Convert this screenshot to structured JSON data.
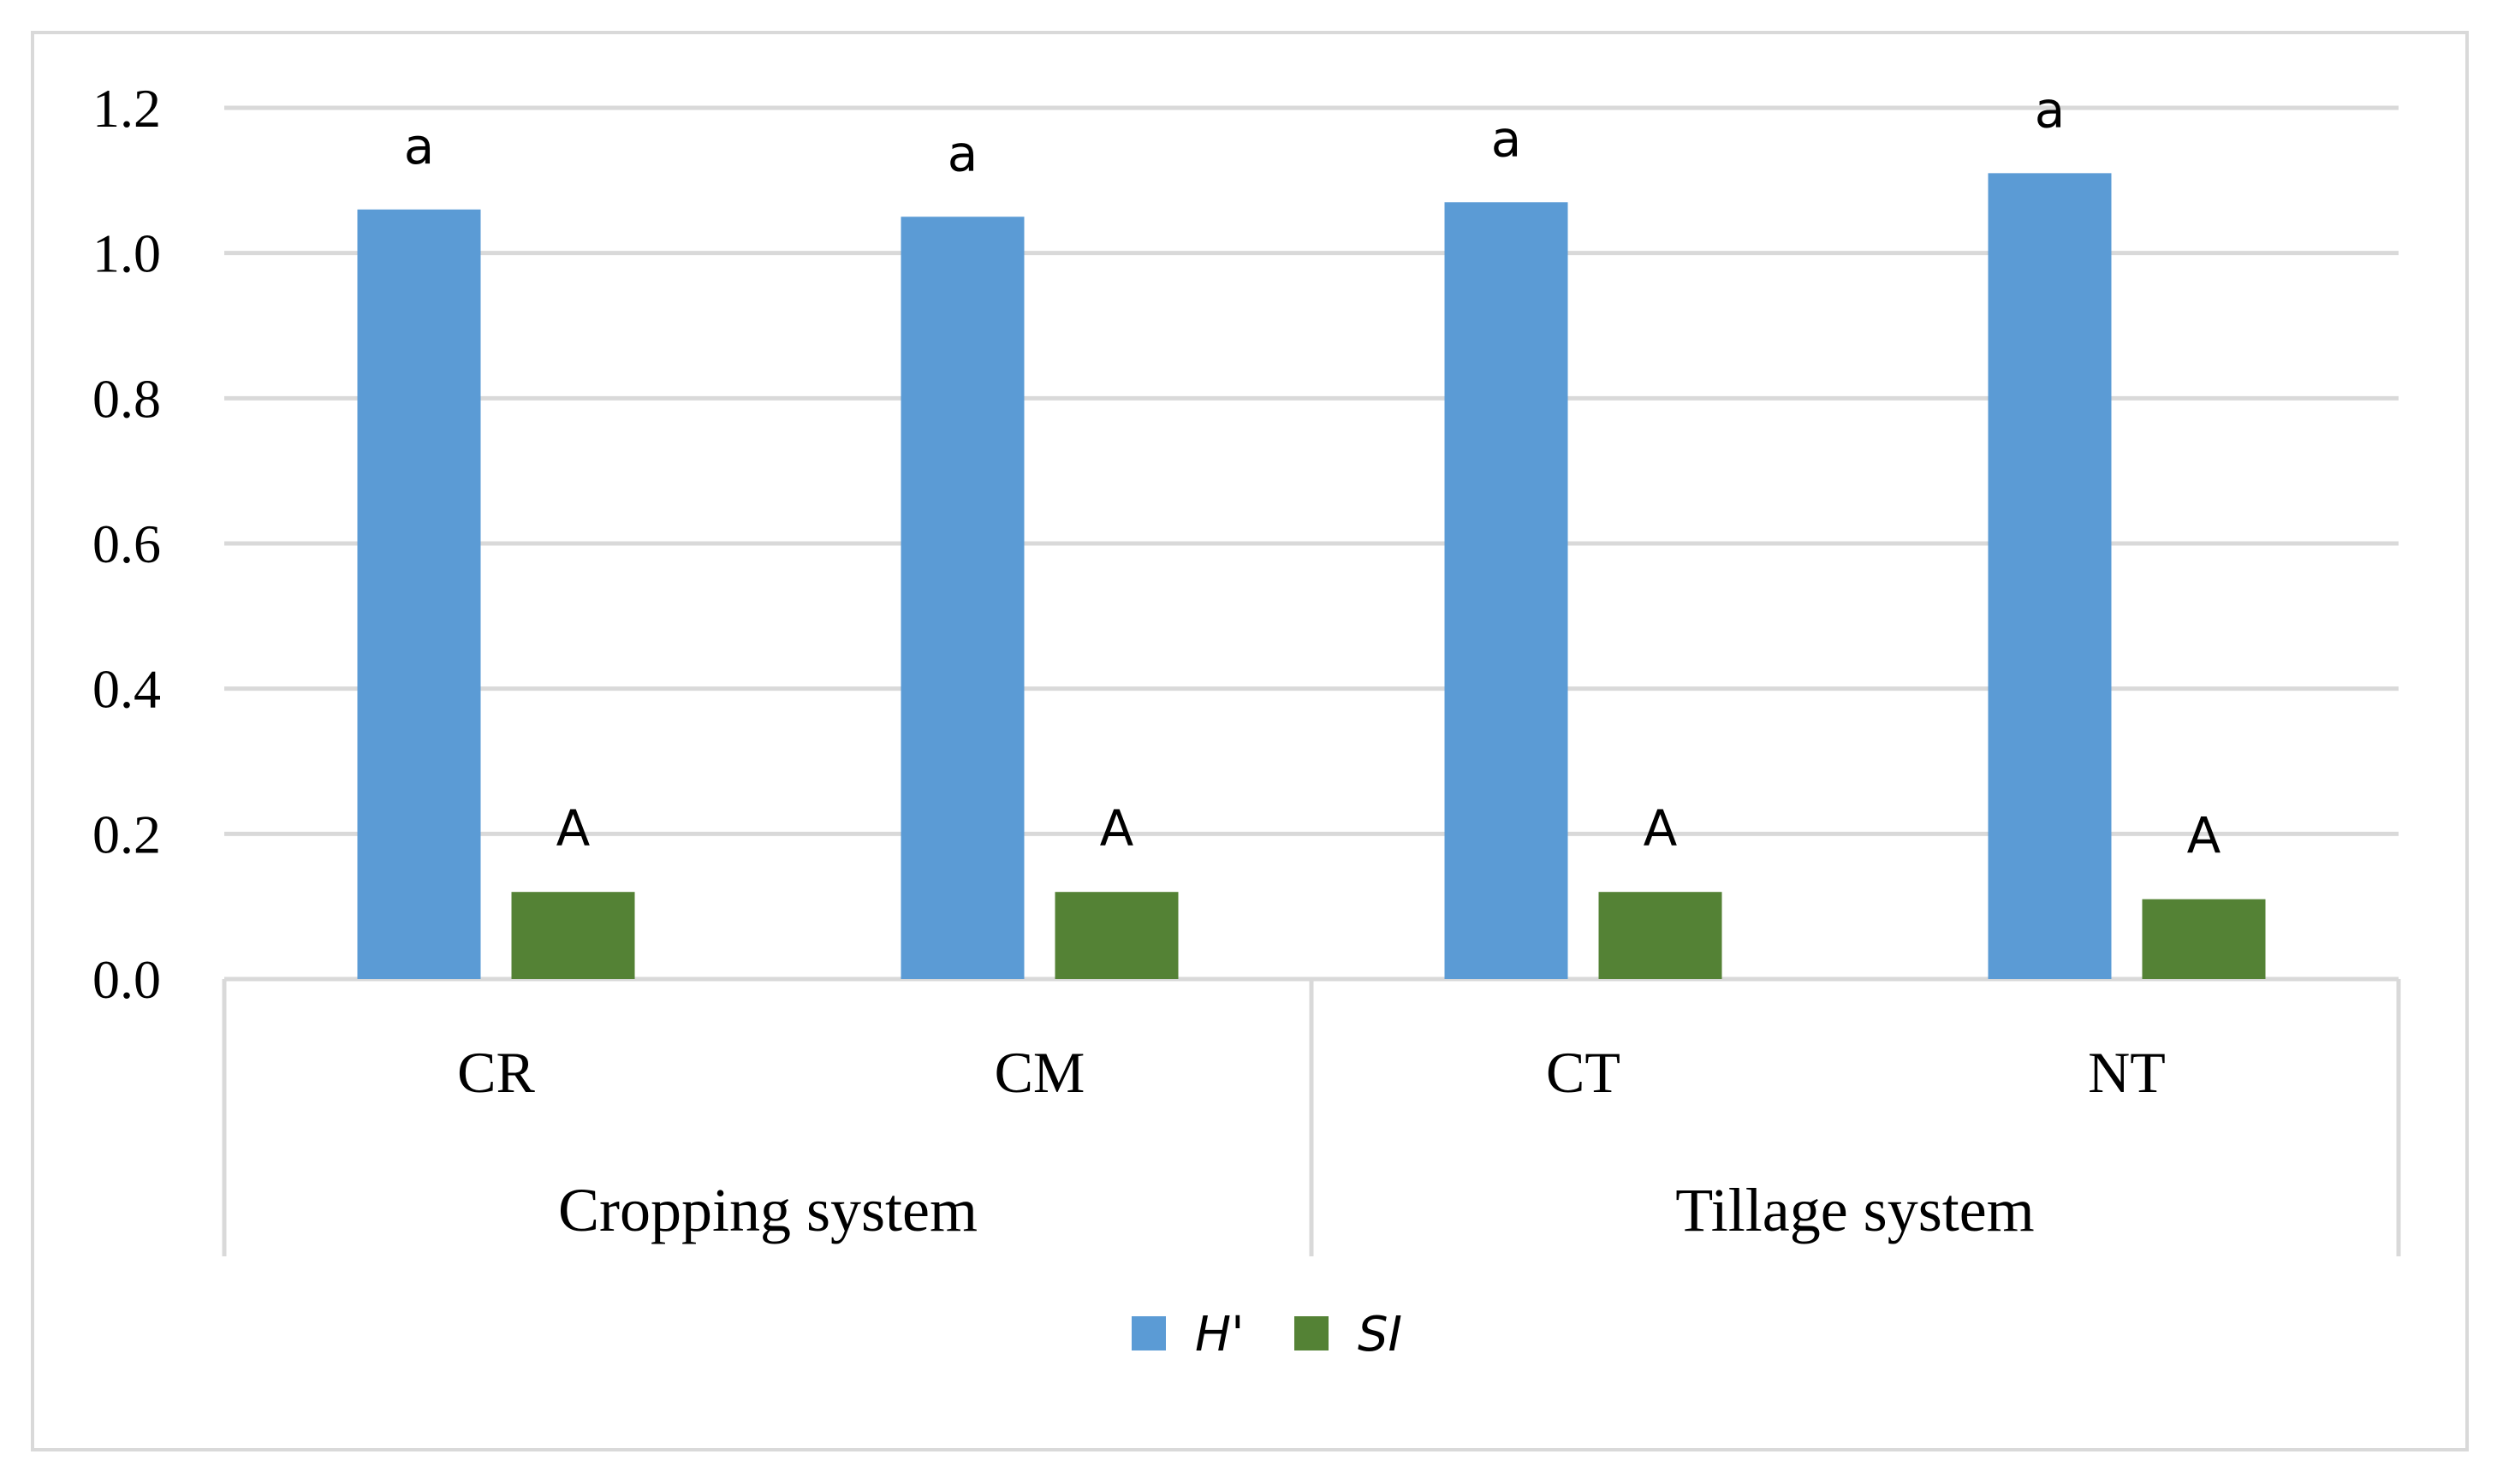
{
  "chart_data": {
    "type": "bar",
    "title": "",
    "xlabel": "",
    "ylabel": "",
    "ylim": [
      0,
      1.2
    ],
    "yticks": [
      "0.0",
      "0.2",
      "0.4",
      "0.6",
      "0.8",
      "1.0",
      "1.2"
    ],
    "categories": [
      "CR",
      "CM",
      "CT",
      "NT"
    ],
    "groups": [
      {
        "label": "Cropping system",
        "categories": [
          "CR",
          "CM"
        ]
      },
      {
        "label": "Tillage system",
        "categories": [
          "CT",
          "NT"
        ]
      }
    ],
    "series": [
      {
        "name": "H'",
        "color": "#5B9BD5",
        "values": [
          1.06,
          1.05,
          1.07,
          1.11
        ],
        "labels": [
          "a",
          "a",
          "a",
          "a"
        ]
      },
      {
        "name": "SI",
        "color": "#548235",
        "values": [
          0.12,
          0.12,
          0.12,
          0.11
        ],
        "labels": [
          "A",
          "A",
          "A",
          "A"
        ]
      }
    ],
    "legend_position": "bottom",
    "grid": true
  }
}
